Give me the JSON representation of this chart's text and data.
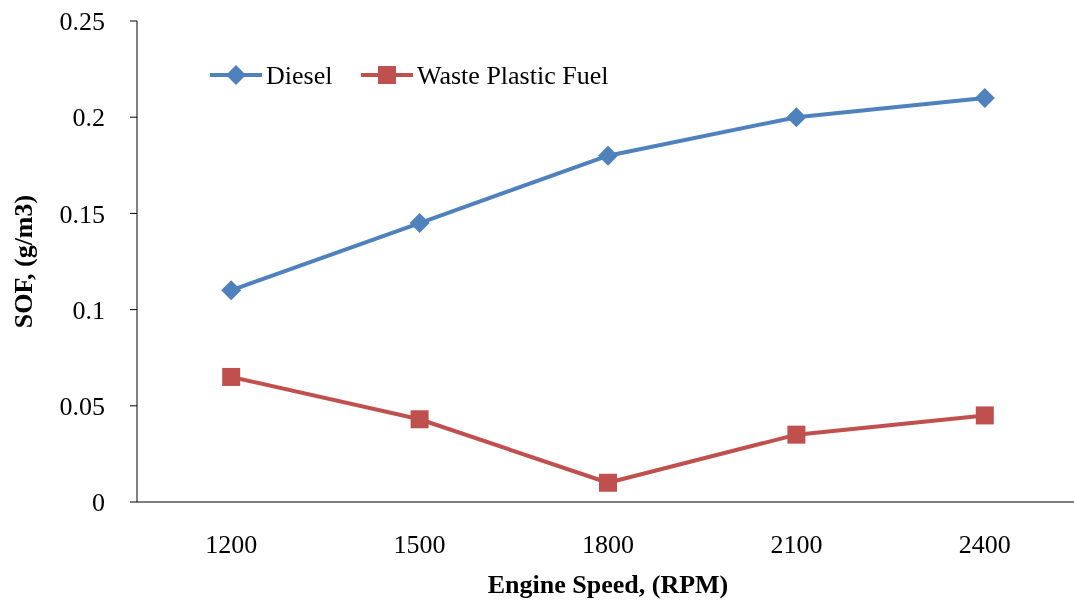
{
  "chart_data": {
    "type": "line",
    "xlabel": "Engine Speed, (RPM)",
    "ylabel": "SOF, (g/m3)",
    "categories": [
      "1200",
      "1500",
      "1800",
      "2100",
      "2400"
    ],
    "series": [
      {
        "name": "Diesel",
        "color": "#4f81bd",
        "marker": "diamond",
        "values": [
          0.11,
          0.145,
          0.18,
          0.2,
          0.21
        ]
      },
      {
        "name": "Waste Plastic Fuel",
        "color": "#c0504d",
        "marker": "square",
        "values": [
          0.065,
          0.043,
          0.01,
          0.035,
          0.045
        ]
      }
    ],
    "ylim": [
      0,
      0.25
    ],
    "yticks": [
      0,
      0.05,
      0.1,
      0.15,
      0.2,
      0.25
    ],
    "grid": false,
    "legend": "top left"
  }
}
